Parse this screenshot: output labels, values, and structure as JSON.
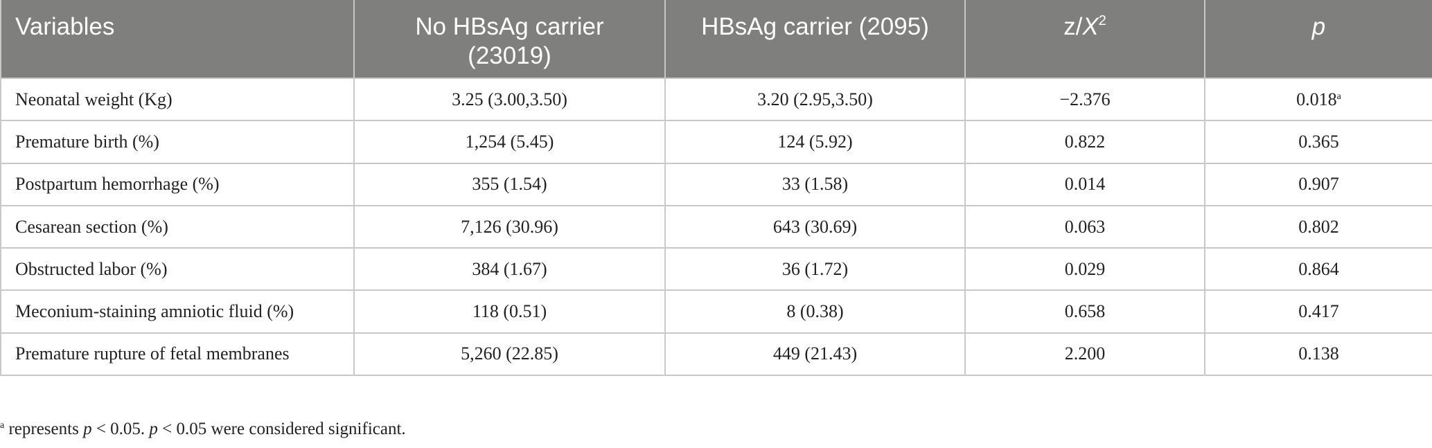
{
  "table": {
    "headers": {
      "variables": "Variables",
      "no_carrier_line1": "No HBsAg carrier",
      "no_carrier_line2": "(23019)",
      "carrier": "HBsAg carrier (2095)",
      "stat_z": "z/",
      "stat_x": "X",
      "stat_sup": "2",
      "p": "p"
    },
    "rows": [
      {
        "variable": "Neonatal weight (Kg)",
        "no_carrier": "3.25 (3.00,3.50)",
        "carrier": "3.20 (2.95,3.50)",
        "stat": "−2.376",
        "p": "0.018",
        "p_mark": "a"
      },
      {
        "variable": "Premature birth (%)",
        "no_carrier": "1,254 (5.45)",
        "carrier": "124 (5.92)",
        "stat": "0.822",
        "p": "0.365",
        "p_mark": ""
      },
      {
        "variable": "Postpartum hemorrhage (%)",
        "no_carrier": "355 (1.54)",
        "carrier": "33 (1.58)",
        "stat": "0.014",
        "p": "0.907",
        "p_mark": ""
      },
      {
        "variable": "Cesarean section (%)",
        "no_carrier": "7,126 (30.96)",
        "carrier": "643 (30.69)",
        "stat": "0.063",
        "p": "0.802",
        "p_mark": ""
      },
      {
        "variable": "Obstructed labor (%)",
        "no_carrier": "384 (1.67)",
        "carrier": "36 (1.72)",
        "stat": "0.029",
        "p": "0.864",
        "p_mark": ""
      },
      {
        "variable": "Meconium-staining amniotic fluid (%)",
        "no_carrier": "118 (0.51)",
        "carrier": "8 (0.38)",
        "stat": "0.658",
        "p": "0.417",
        "p_mark": ""
      },
      {
        "variable": "Premature rupture of fetal membranes",
        "no_carrier": "5,260 (22.85)",
        "carrier": "449 (21.43)",
        "stat": "2.200",
        "p": "0.138",
        "p_mark": ""
      }
    ]
  },
  "footnote": {
    "mark": "a",
    "t1": " represents ",
    "p1": "p",
    "t2": " < 0.05. ",
    "p2": "p",
    "t3": " < 0.05 were considered significant."
  },
  "colors": {
    "header_bg": "#7f7f7e",
    "header_text": "#ffffff",
    "grid": "#c8c8c8"
  }
}
